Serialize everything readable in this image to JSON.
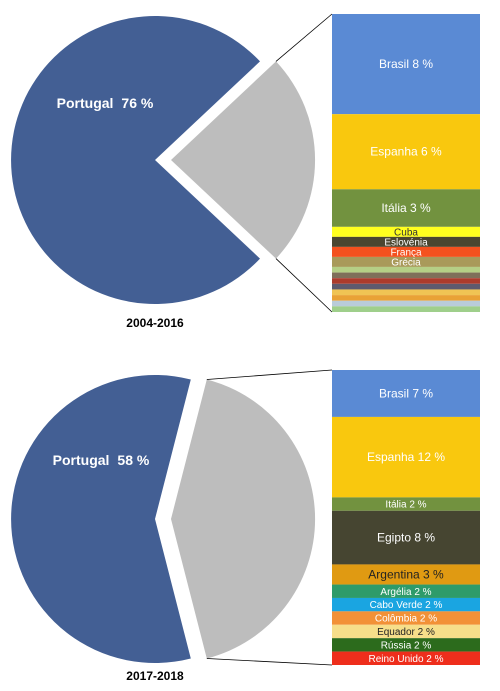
{
  "colors": {
    "portugal": "#435f94",
    "others_slice": "#bdbdbd",
    "connector": "#000000"
  },
  "chart_data": [
    {
      "type": "bar-of-pie",
      "period": "2004-2016",
      "main_label": "Portugal",
      "main_value_label": "76 %",
      "main_share": 76,
      "others_share": 24,
      "stack": [
        {
          "name": "Brasil",
          "value_label": "8 %",
          "share": 8,
          "color": "#5a8ad4",
          "show_label": true
        },
        {
          "name": "Espanha",
          "value_label": "6 %",
          "share": 6,
          "color": "#f9c80e",
          "show_label": true
        },
        {
          "name": "Itália",
          "value_label": "3 %",
          "share": 3,
          "color": "#72923f",
          "show_label": true
        },
        {
          "name": "Cuba",
          "value_label": "",
          "share": 0.8,
          "color": "#ffff1f",
          "show_label": true,
          "text_color": "#333333"
        },
        {
          "name": "Eslovénia",
          "value_label": "",
          "share": 0.8,
          "color": "#4a4630",
          "show_label": true
        },
        {
          "name": "França",
          "value_label": "",
          "share": 0.8,
          "color": "#f4511e",
          "show_label": true
        },
        {
          "name": "Grécia",
          "value_label": "",
          "share": 0.8,
          "color": "#a99a5a",
          "show_label": true
        },
        {
          "name": "",
          "value_label": "",
          "share": 0.45,
          "color": "#b5cf86",
          "show_label": false
        },
        {
          "name": "",
          "value_label": "",
          "share": 0.45,
          "color": "#7f6f5a",
          "show_label": false
        },
        {
          "name": "",
          "value_label": "",
          "share": 0.45,
          "color": "#ab3b2c",
          "show_label": false
        },
        {
          "name": "",
          "value_label": "",
          "share": 0.45,
          "color": "#5d5a6e",
          "show_label": false
        },
        {
          "name": "",
          "value_label": "",
          "share": 0.45,
          "color": "#f0c454",
          "show_label": false
        },
        {
          "name": "",
          "value_label": "",
          "share": 0.45,
          "color": "#e9a236",
          "show_label": false
        },
        {
          "name": "",
          "value_label": "",
          "share": 0.45,
          "color": "#b9ccd9",
          "show_label": false
        },
        {
          "name": "",
          "value_label": "",
          "share": 0.45,
          "color": "#9fcf8b",
          "show_label": false
        }
      ]
    },
    {
      "type": "bar-of-pie",
      "period": "2017-2018",
      "main_label": "Portugal",
      "main_value_label": "58 %",
      "main_share": 58,
      "others_share": 42,
      "stack": [
        {
          "name": "Brasil",
          "value_label": "7 %",
          "share": 7,
          "color": "#5a8ad4",
          "show_label": true
        },
        {
          "name": "Espanha",
          "value_label": "12 %",
          "share": 12,
          "color": "#f9c80e",
          "show_label": true
        },
        {
          "name": "Itália",
          "value_label": "2 %",
          "share": 2,
          "color": "#72923f",
          "show_label": true
        },
        {
          "name": "Egipto",
          "value_label": "8 %",
          "share": 8,
          "color": "#464531",
          "show_label": true
        },
        {
          "name": "Argentina",
          "value_label": "3 %",
          "share": 3,
          "color": "#e09a12",
          "show_label": true,
          "text_color": "#222222"
        },
        {
          "name": "Argélia",
          "value_label": "2 %",
          "share": 2,
          "color": "#2e9b6a",
          "show_label": true
        },
        {
          "name": "Cabo Verde",
          "value_label": "2 %",
          "share": 2,
          "color": "#1aa5e1",
          "show_label": true
        },
        {
          "name": "Colômbia",
          "value_label": "2 %",
          "share": 2,
          "color": "#f29137",
          "show_label": true
        },
        {
          "name": "Equador",
          "value_label": "2 %",
          "share": 2,
          "color": "#f6de8a",
          "show_label": true,
          "text_color": "#222222"
        },
        {
          "name": "Rússia",
          "value_label": "2 %",
          "share": 2,
          "color": "#2c6b1c",
          "show_label": true
        },
        {
          "name": "Reino Unido",
          "value_label": "2 %",
          "share": 2,
          "color": "#ee2e1c",
          "show_label": true
        }
      ]
    }
  ]
}
